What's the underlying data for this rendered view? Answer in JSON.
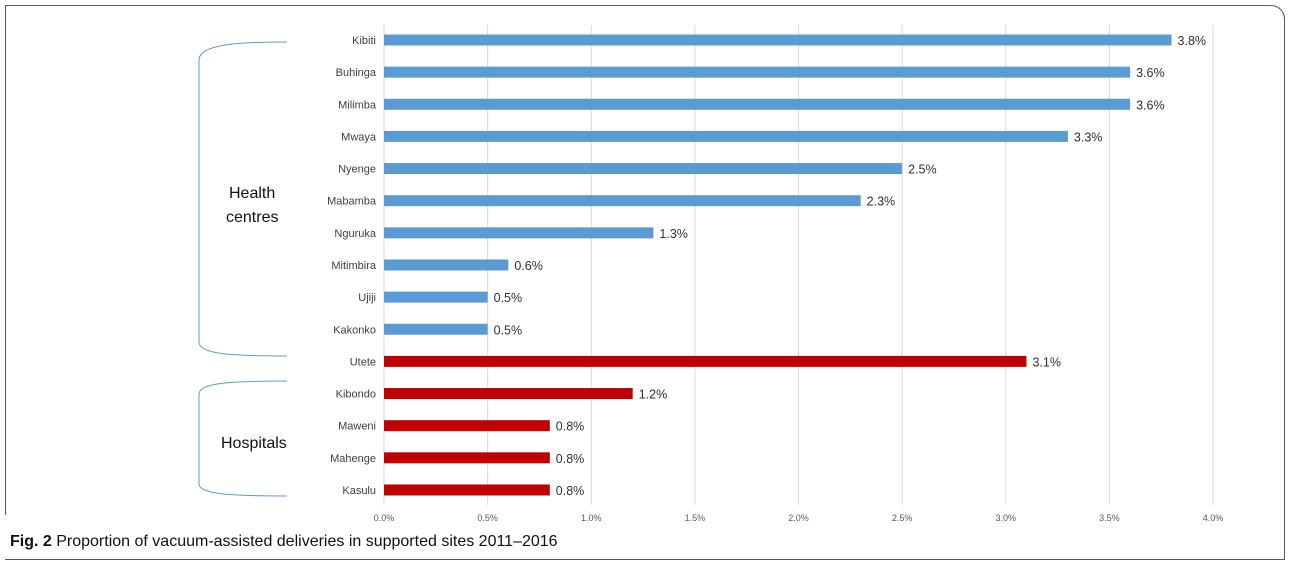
{
  "figure": {
    "caption_label": "Fig. 2",
    "caption_text": "Proportion of vacuum-assisted deliveries in supported sites 2011–2016"
  },
  "groups": [
    {
      "label_lines": [
        "Health",
        "centres"
      ]
    },
    {
      "label_lines": [
        "Hospitals"
      ]
    }
  ],
  "colors": {
    "health_centre": "#5b9bd5",
    "hospital": "#c00000",
    "grid": "#d9d9d9",
    "bracket": "#5b9bd5"
  },
  "chart_data": {
    "type": "bar",
    "orientation": "horizontal",
    "title": "",
    "xlabel": "",
    "ylabel": "",
    "xlim": [
      0,
      4.0
    ],
    "grid": true,
    "legend": "none",
    "x_ticks": [
      "0.0%",
      "0.5%",
      "1.0%",
      "1.5%",
      "2.0%",
      "2.5%",
      "3.0%",
      "3.5%",
      "4.0%"
    ],
    "categories": [
      "Kibiti",
      "Buhinga",
      "Milimba",
      "Mwaya",
      "Nyenge",
      "Mabamba",
      "Nguruka",
      "Mitimbira",
      "Ujiji",
      "Kakonko",
      "Utete",
      "Kibondo",
      "Maweni",
      "Mahenge",
      "Kasulu"
    ],
    "values": [
      3.8,
      3.6,
      3.6,
      3.3,
      2.5,
      2.3,
      1.3,
      0.6,
      0.5,
      0.5,
      3.1,
      1.2,
      0.8,
      0.8,
      0.8
    ],
    "value_labels": [
      "3.8%",
      "3.6%",
      "3.6%",
      "3.3%",
      "2.5%",
      "2.3%",
      "1.3%",
      "0.6%",
      "0.5%",
      "0.5%",
      "3.1%",
      "1.2%",
      "0.8%",
      "0.8%",
      "0.8%"
    ],
    "site_type": [
      "health_centre",
      "health_centre",
      "health_centre",
      "health_centre",
      "health_centre",
      "health_centre",
      "health_centre",
      "health_centre",
      "health_centre",
      "health_centre",
      "hospital",
      "hospital",
      "hospital",
      "hospital",
      "hospital"
    ]
  }
}
